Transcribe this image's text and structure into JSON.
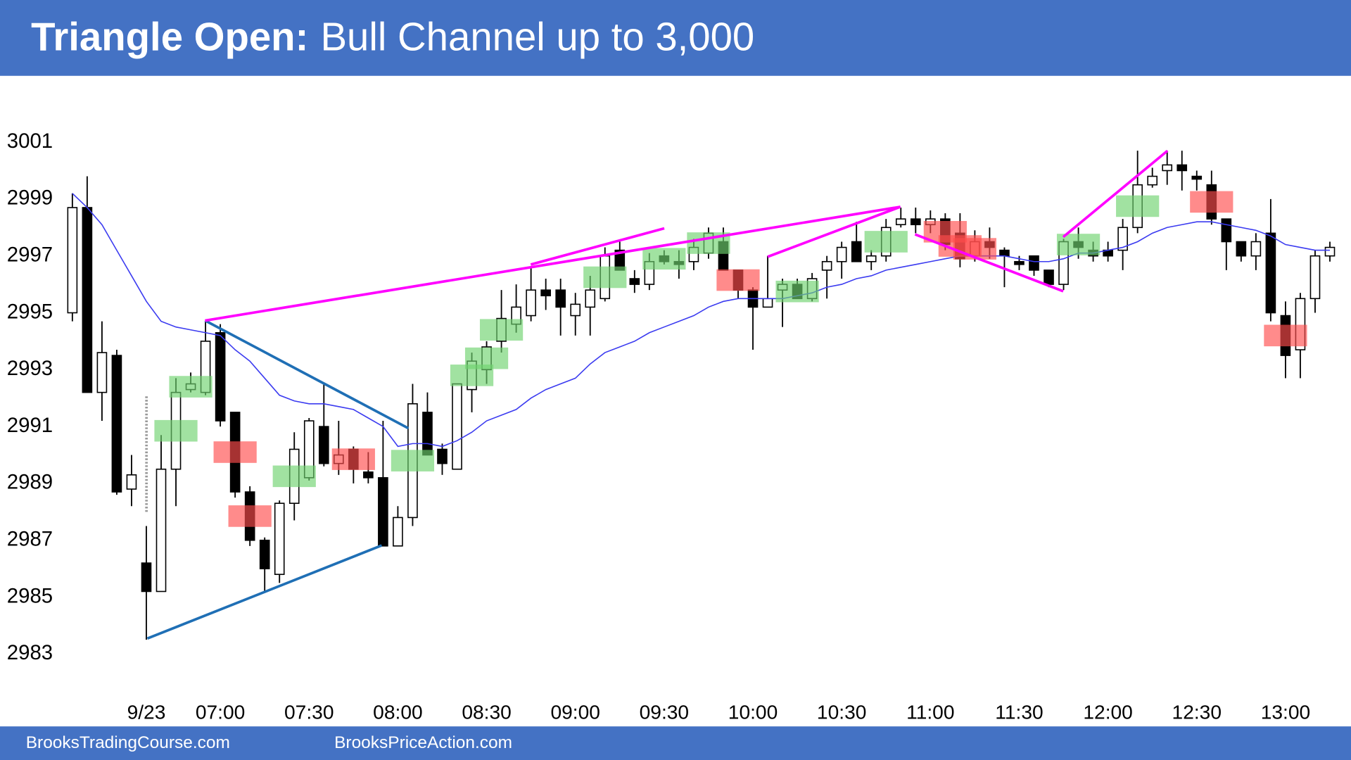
{
  "chart_data": {
    "type": "candlestick",
    "title_bold": "Triangle Open:",
    "title": "Bull Channel up to 3,000",
    "footer": [
      "BrooksTradingCourse.com",
      "BrooksPriceAction.com"
    ],
    "open": [
      2995.0,
      2998.7,
      2992.2,
      2993.5,
      2988.8,
      2986.2,
      2985.2,
      2989.5,
      2992.3,
      2992.2,
      2994.3,
      2991.5,
      2988.7,
      2987.0,
      2985.8,
      2988.3,
      2989.2,
      2991.0,
      2989.7,
      2990.2,
      2989.4,
      2989.2,
      2986.8,
      2987.8,
      2991.5,
      2990.2,
      2989.5,
      2992.3,
      2993.0,
      2994.0,
      2994.6,
      2994.9,
      2995.8,
      2995.8,
      2994.9,
      2995.2,
      2995.5,
      2997.2,
      2996.2,
      2996.0,
      2997.0,
      2996.8,
      2996.8,
      2997.1,
      2997.5,
      2996.5,
      2995.8,
      2995.2,
      2995.8,
      2996.0,
      2995.5,
      2996.5,
      2996.8,
      2997.5,
      2996.8,
      2997.0,
      2998.1,
      2998.3,
      2998.1,
      2998.3,
      2997.8,
      2997.0,
      2997.5,
      2997.2,
      2996.8,
      2997.0,
      2996.5,
      2996.0,
      2997.5,
      2997.2,
      2997.2,
      2997.2,
      2998.0,
      2999.5,
      3000.0,
      3000.2,
      2999.8,
      2999.5,
      2998.3,
      2997.5,
      2997.0,
      2997.8,
      2994.9,
      2993.7,
      2995.5,
      2997.0
    ],
    "high": [
      2999.2,
      2999.8,
      2994.7,
      2993.7,
      2990.0,
      2987.5,
      2990.7,
      2992.7,
      2992.9,
      2994.7,
      2994.6,
      2991.5,
      2988.9,
      2987.1,
      2988.4,
      2990.8,
      2991.3,
      2992.5,
      2991.2,
      2990.3,
      2990.1,
      2991.2,
      2988.2,
      2992.5,
      2992.2,
      2990.4,
      2992.5,
      2993.6,
      2994.0,
      2995.8,
      2996.0,
      2996.6,
      2996.2,
      2996.2,
      2995.7,
      2996.3,
      2997.3,
      2997.5,
      2996.5,
      2997.1,
      2997.2,
      2997.2,
      2997.6,
      2998.0,
      2998.0,
      2996.5,
      2995.9,
      2997.0,
      2996.2,
      2996.2,
      2996.4,
      2997.0,
      2997.5,
      2998.2,
      2997.2,
      2998.3,
      2998.7,
      2998.7,
      2998.6,
      2998.5,
      2998.5,
      2997.9,
      2998.0,
      2997.3,
      2997.0,
      2997.0,
      2996.5,
      2997.6,
      2998.0,
      2997.5,
      2997.5,
      2998.3,
      3000.7,
      3000.1,
      3000.7,
      3000.7,
      3000.0,
      3000.0,
      2998.3,
      2997.5,
      2997.8,
      2999.0,
      2995.4,
      2995.7,
      2997.2,
      2997.5
    ],
    "low": [
      2994.7,
      2992.2,
      2991.2,
      2988.6,
      2988.2,
      2983.5,
      2985.2,
      2988.2,
      2992.2,
      2992.1,
      2991.0,
      2988.5,
      2986.8,
      2985.2,
      2985.5,
      2987.7,
      2989.1,
      2989.6,
      2989.3,
      2989.0,
      2989.0,
      2986.8,
      2986.8,
      2987.5,
      2990.0,
      2989.3,
      2989.5,
      2991.5,
      2992.5,
      2993.6,
      2994.3,
      2994.7,
      2995.1,
      2994.2,
      2994.2,
      2994.2,
      2995.4,
      2996.5,
      2995.7,
      2995.8,
      2996.7,
      2996.2,
      2996.5,
      2996.9,
      2996.5,
      2995.5,
      2993.7,
      2995.2,
      2994.5,
      2995.5,
      2995.4,
      2995.5,
      2996.2,
      2996.8,
      2996.5,
      2996.8,
      2998.0,
      2997.8,
      2997.8,
      2997.2,
      2996.6,
      2996.8,
      2996.9,
      2995.9,
      2996.5,
      2996.3,
      2995.9,
      2995.8,
      2996.9,
      2996.8,
      2996.8,
      2996.5,
      2997.8,
      2999.4,
      2999.5,
      2999.3,
      2999.3,
      2998.1,
      2996.5,
      2996.8,
      2996.5,
      2994.7,
      2992.7,
      2992.7,
      2995.0,
      2996.8
    ],
    "close": [
      2998.7,
      2992.2,
      2993.6,
      2988.7,
      2989.3,
      2985.2,
      2989.5,
      2992.2,
      2992.5,
      2994.0,
      2991.2,
      2988.7,
      2987.0,
      2986.0,
      2988.3,
      2990.2,
      2991.2,
      2989.7,
      2990.0,
      2989.5,
      2989.2,
      2986.8,
      2987.8,
      2991.8,
      2990.0,
      2989.7,
      2992.5,
      2993.3,
      2993.8,
      2994.8,
      2995.2,
      2995.8,
      2995.6,
      2995.2,
      2995.3,
      2995.8,
      2997.0,
      2996.5,
      2996.0,
      2996.8,
      2996.8,
      2996.7,
      2997.3,
      2997.8,
      2996.5,
      2995.8,
      2995.2,
      2995.5,
      2996.0,
      2995.5,
      2996.2,
      2996.8,
      2997.3,
      2996.8,
      2997.0,
      2998.0,
      2998.3,
      2998.1,
      2998.3,
      2997.4,
      2996.9,
      2997.5,
      2997.3,
      2997.0,
      2996.7,
      2996.5,
      2996.0,
      2997.5,
      2997.3,
      2997.0,
      2997.0,
      2998.0,
      2999.5,
      2999.8,
      3000.2,
      3000.0,
      2999.7,
      2998.3,
      2997.5,
      2997.0,
      2997.5,
      2995.0,
      2993.5,
      2995.5,
      2997.0,
      2997.3
    ],
    "moving_average": {
      "color": "#3b3bf0",
      "values": [
        2999.2,
        2998.7,
        2998.1,
        2997.2,
        2996.3,
        2995.4,
        2994.7,
        2994.5,
        2994.4,
        2994.3,
        2994.2,
        2993.7,
        2993.3,
        2992.7,
        2992.1,
        2991.9,
        2991.8,
        2991.8,
        2991.7,
        2991.6,
        2991.3,
        2991.0,
        2990.3,
        2990.4,
        2990.4,
        2990.3,
        2990.5,
        2990.8,
        2991.2,
        2991.4,
        2991.6,
        2992.0,
        2992.3,
        2992.5,
        2992.7,
        2993.2,
        2993.6,
        2993.8,
        2994.0,
        2994.3,
        2994.5,
        2994.7,
        2994.9,
        2995.2,
        2995.4,
        2995.5,
        2995.5,
        2995.5,
        2995.5,
        2995.6,
        2995.7,
        2995.9,
        2996.0,
        2996.2,
        2996.3,
        2996.5,
        2996.6,
        2996.7,
        2996.8,
        2996.9,
        2997.0,
        2997.0,
        2997.0,
        2997.0,
        2996.9,
        2996.8,
        2996.8,
        2996.9,
        2997.1,
        2997.1,
        2997.2,
        2997.3,
        2997.5,
        2997.8,
        2998.0,
        2998.1,
        2998.2,
        2998.2,
        2998.1,
        2998.0,
        2997.9,
        2997.7,
        2997.4,
        2997.3,
        2997.2,
        2997.2
      ]
    },
    "bull_signal_bars": {
      "color": "#6fd36f",
      "indices": [
        7,
        8,
        15,
        23,
        27,
        28,
        29,
        36,
        40,
        43,
        49,
        55,
        68,
        72
      ]
    },
    "bear_signal_bars": {
      "color": "#ff4d4d",
      "indices": [
        11,
        12,
        19,
        45,
        59,
        60,
        61,
        77,
        82
      ]
    },
    "xlim": [
      0,
      85
    ],
    "xticks": [
      {
        "value": 5,
        "label": "9/23"
      },
      {
        "value": 10,
        "label": "07:00"
      },
      {
        "value": 16,
        "label": "07:30"
      },
      {
        "value": 22,
        "label": "08:00"
      },
      {
        "value": 28,
        "label": "08:30"
      },
      {
        "value": 34,
        "label": "09:00"
      },
      {
        "value": 40,
        "label": "09:30"
      },
      {
        "value": 46,
        "label": "10:00"
      },
      {
        "value": 52,
        "label": "10:30"
      },
      {
        "value": 58,
        "label": "11:00"
      },
      {
        "value": 64,
        "label": "11:30"
      },
      {
        "value": 70,
        "label": "12:00"
      },
      {
        "value": 76,
        "label": "12:30"
      },
      {
        "value": 82,
        "label": "13:00"
      }
    ],
    "ylim": [
      2983,
      3001
    ],
    "yticks": [
      2983,
      2985,
      2987,
      2989,
      2991,
      2993,
      2995,
      2997,
      2999,
      3001
    ]
  }
}
